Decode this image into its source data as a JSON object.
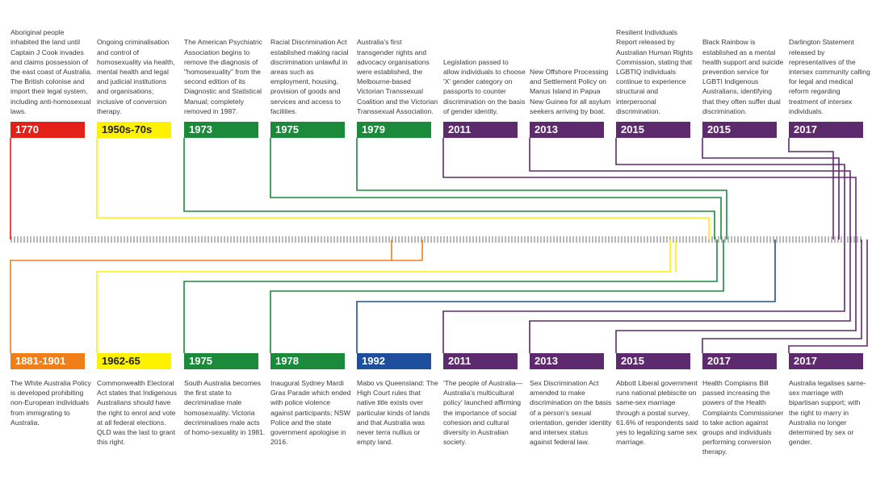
{
  "top_events": [
    {
      "year": "1770",
      "color": "#e32119",
      "text_color": "#ffffff",
      "desc": "Aboriginal people inhabited the land until Captain J Cook invades and claims possession of the east coast of Australia. The British colonise and import their legal system, including anti-homosexual laws."
    },
    {
      "year": "1950s-70s",
      "color": "#fff200",
      "text_color": "#222222",
      "desc": "Ongoing criminalisation and control of homosexuality via health, mental health and legal and judicial institutions and organisations; inclusive of conversion therapy."
    },
    {
      "year": "1973",
      "color": "#1b8a3a",
      "text_color": "#ffffff",
      "desc": "The American Psychiatric Association begins to remove the diagnosis of \"homosexuality\" from the second edition of its Diagnostic and Statistical Manual; completely removed in 1987."
    },
    {
      "year": "1975",
      "color": "#1b8a3a",
      "text_color": "#ffffff",
      "desc": "Racial Discrimination Act established making racial discrimination unlawful in areas such as employment, housing, provision of goods and services and access to facilities."
    },
    {
      "year": "1979",
      "color": "#1b8a3a",
      "text_color": "#ffffff",
      "desc": "Australia's first transgender rights and advocacy organisations were established, the Melbourne-based Victorian Transsexual Coalition and the Victorian Transsexual Association."
    },
    {
      "year": "2011",
      "color": "#5e2a6e",
      "text_color": "#ffffff",
      "desc": "Legislation passed to allow individuals to choose 'X' gender category on passports to counter discrimination on the basis of gender identity."
    },
    {
      "year": "2013",
      "color": "#5e2a6e",
      "text_color": "#ffffff",
      "desc": "New Offshore Processing and Settlement Policy on Manus Island in Papua New Guinea for all asylum seekers arriving by boat."
    },
    {
      "year": "2015",
      "color": "#5e2a6e",
      "text_color": "#ffffff",
      "desc": "Resilient Individuals Report released by Australian Human Rights Commission, stating that LGBTIQ individuals continue to experience structural and interpersonal discrimination."
    },
    {
      "year": "2015",
      "color": "#5e2a6e",
      "text_color": "#ffffff",
      "desc": "Black Rainbow is established as a mental health support and suicide prevention service for LGBTI Indigenous Australians, identifying that they often suffer dual discrimination."
    },
    {
      "year": "2017",
      "color": "#5e2a6e",
      "text_color": "#ffffff",
      "desc": "Darlington Statement released by representatives of the intersex community calling for legal and medical reform regarding treatment of intersex individuals."
    }
  ],
  "bottom_events": [
    {
      "year": "1881-1901",
      "color": "#f07f1a",
      "text_color": "#ffffff",
      "desc": "The White Australia Policy is developed prohibiting non-European individuals from immigrating to Australia."
    },
    {
      "year": "1962-65",
      "color": "#fff200",
      "text_color": "#222222",
      "desc": "Commonwealth Electoral Act states that Indigenous Australians should have the right to enrol and vote at all federal elections. QLD was the last to grant this right."
    },
    {
      "year": "1975",
      "color": "#1b8a3a",
      "text_color": "#ffffff",
      "desc": "South Australia becomes the first state to decriminalise male homosexuality. Victoria decriminalises male acts of homo-sexuality in 1981."
    },
    {
      "year": "1978",
      "color": "#1b8a3a",
      "text_color": "#ffffff",
      "desc": "Inaugural Sydney Mardi Gras Parade which ended with police violence against participants; NSW Police and the state government apologise in 2016."
    },
    {
      "year": "1992",
      "color": "#1e4f9c",
      "text_color": "#ffffff",
      "desc": "Mabo vs Queensland: The High Court rules that native title exists over particular kinds of lands and that Australia was never terra nullius or empty land."
    },
    {
      "year": "2011",
      "color": "#5e2a6e",
      "text_color": "#ffffff",
      "desc": "'The people of Australia—Australia's multicultural policy' launched affirming the importance of social cohesion and cultural diversity in Australian society."
    },
    {
      "year": "2013",
      "color": "#5e2a6e",
      "text_color": "#ffffff",
      "desc": "Sex Discrimination Act amended to make discrimination on the basis of a person's sexual orientation, gender identity and intersex status against federal law."
    },
    {
      "year": "2015",
      "color": "#5e2a6e",
      "text_color": "#ffffff",
      "desc": "Abbott Liberal government runs national plebiscite on same-sex marriage through a postal survey, 61.6% of respondents said yes to legalizing same sex marriage."
    },
    {
      "year": "2017",
      "color": "#5e2a6e",
      "text_color": "#ffffff",
      "desc": "Health Complains Bill passed increasing the powers of the Health Complaints Commissioner to take action against groups and individuals performing conversion therapy."
    },
    {
      "year": "2017",
      "color": "#5e2a6e",
      "text_color": "#ffffff",
      "desc": "Australia legalises same-sex marriage with bipartisan support; with the right to marry in Australia no longer determined by sex or gender."
    }
  ]
}
